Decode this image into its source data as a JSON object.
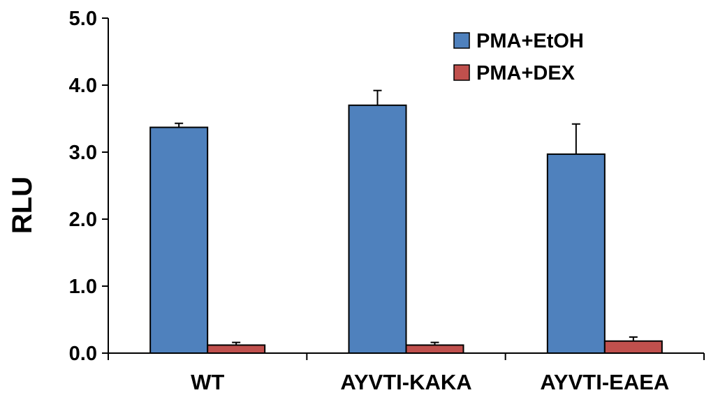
{
  "chart_data": {
    "type": "bar",
    "title": "",
    "xlabel": "",
    "ylabel": "RLU",
    "ylim": [
      0,
      5
    ],
    "yticks": [
      "0.0",
      "1.0",
      "2.0",
      "3.0",
      "4.0",
      "5.0"
    ],
    "categories": [
      "WT",
      "AYVTI-KAKA",
      "AYVTI-EAEA"
    ],
    "series": [
      {
        "name": "PMA+EtOH",
        "color": "#4f81bd",
        "values": [
          3.37,
          3.7,
          2.97
        ],
        "errors": [
          0.06,
          0.22,
          0.45
        ]
      },
      {
        "name": "PMA+DEX",
        "color": "#c0504d",
        "values": [
          0.12,
          0.12,
          0.18
        ],
        "errors": [
          0.04,
          0.04,
          0.06
        ]
      }
    ],
    "legend": "top-right",
    "grid": false
  }
}
